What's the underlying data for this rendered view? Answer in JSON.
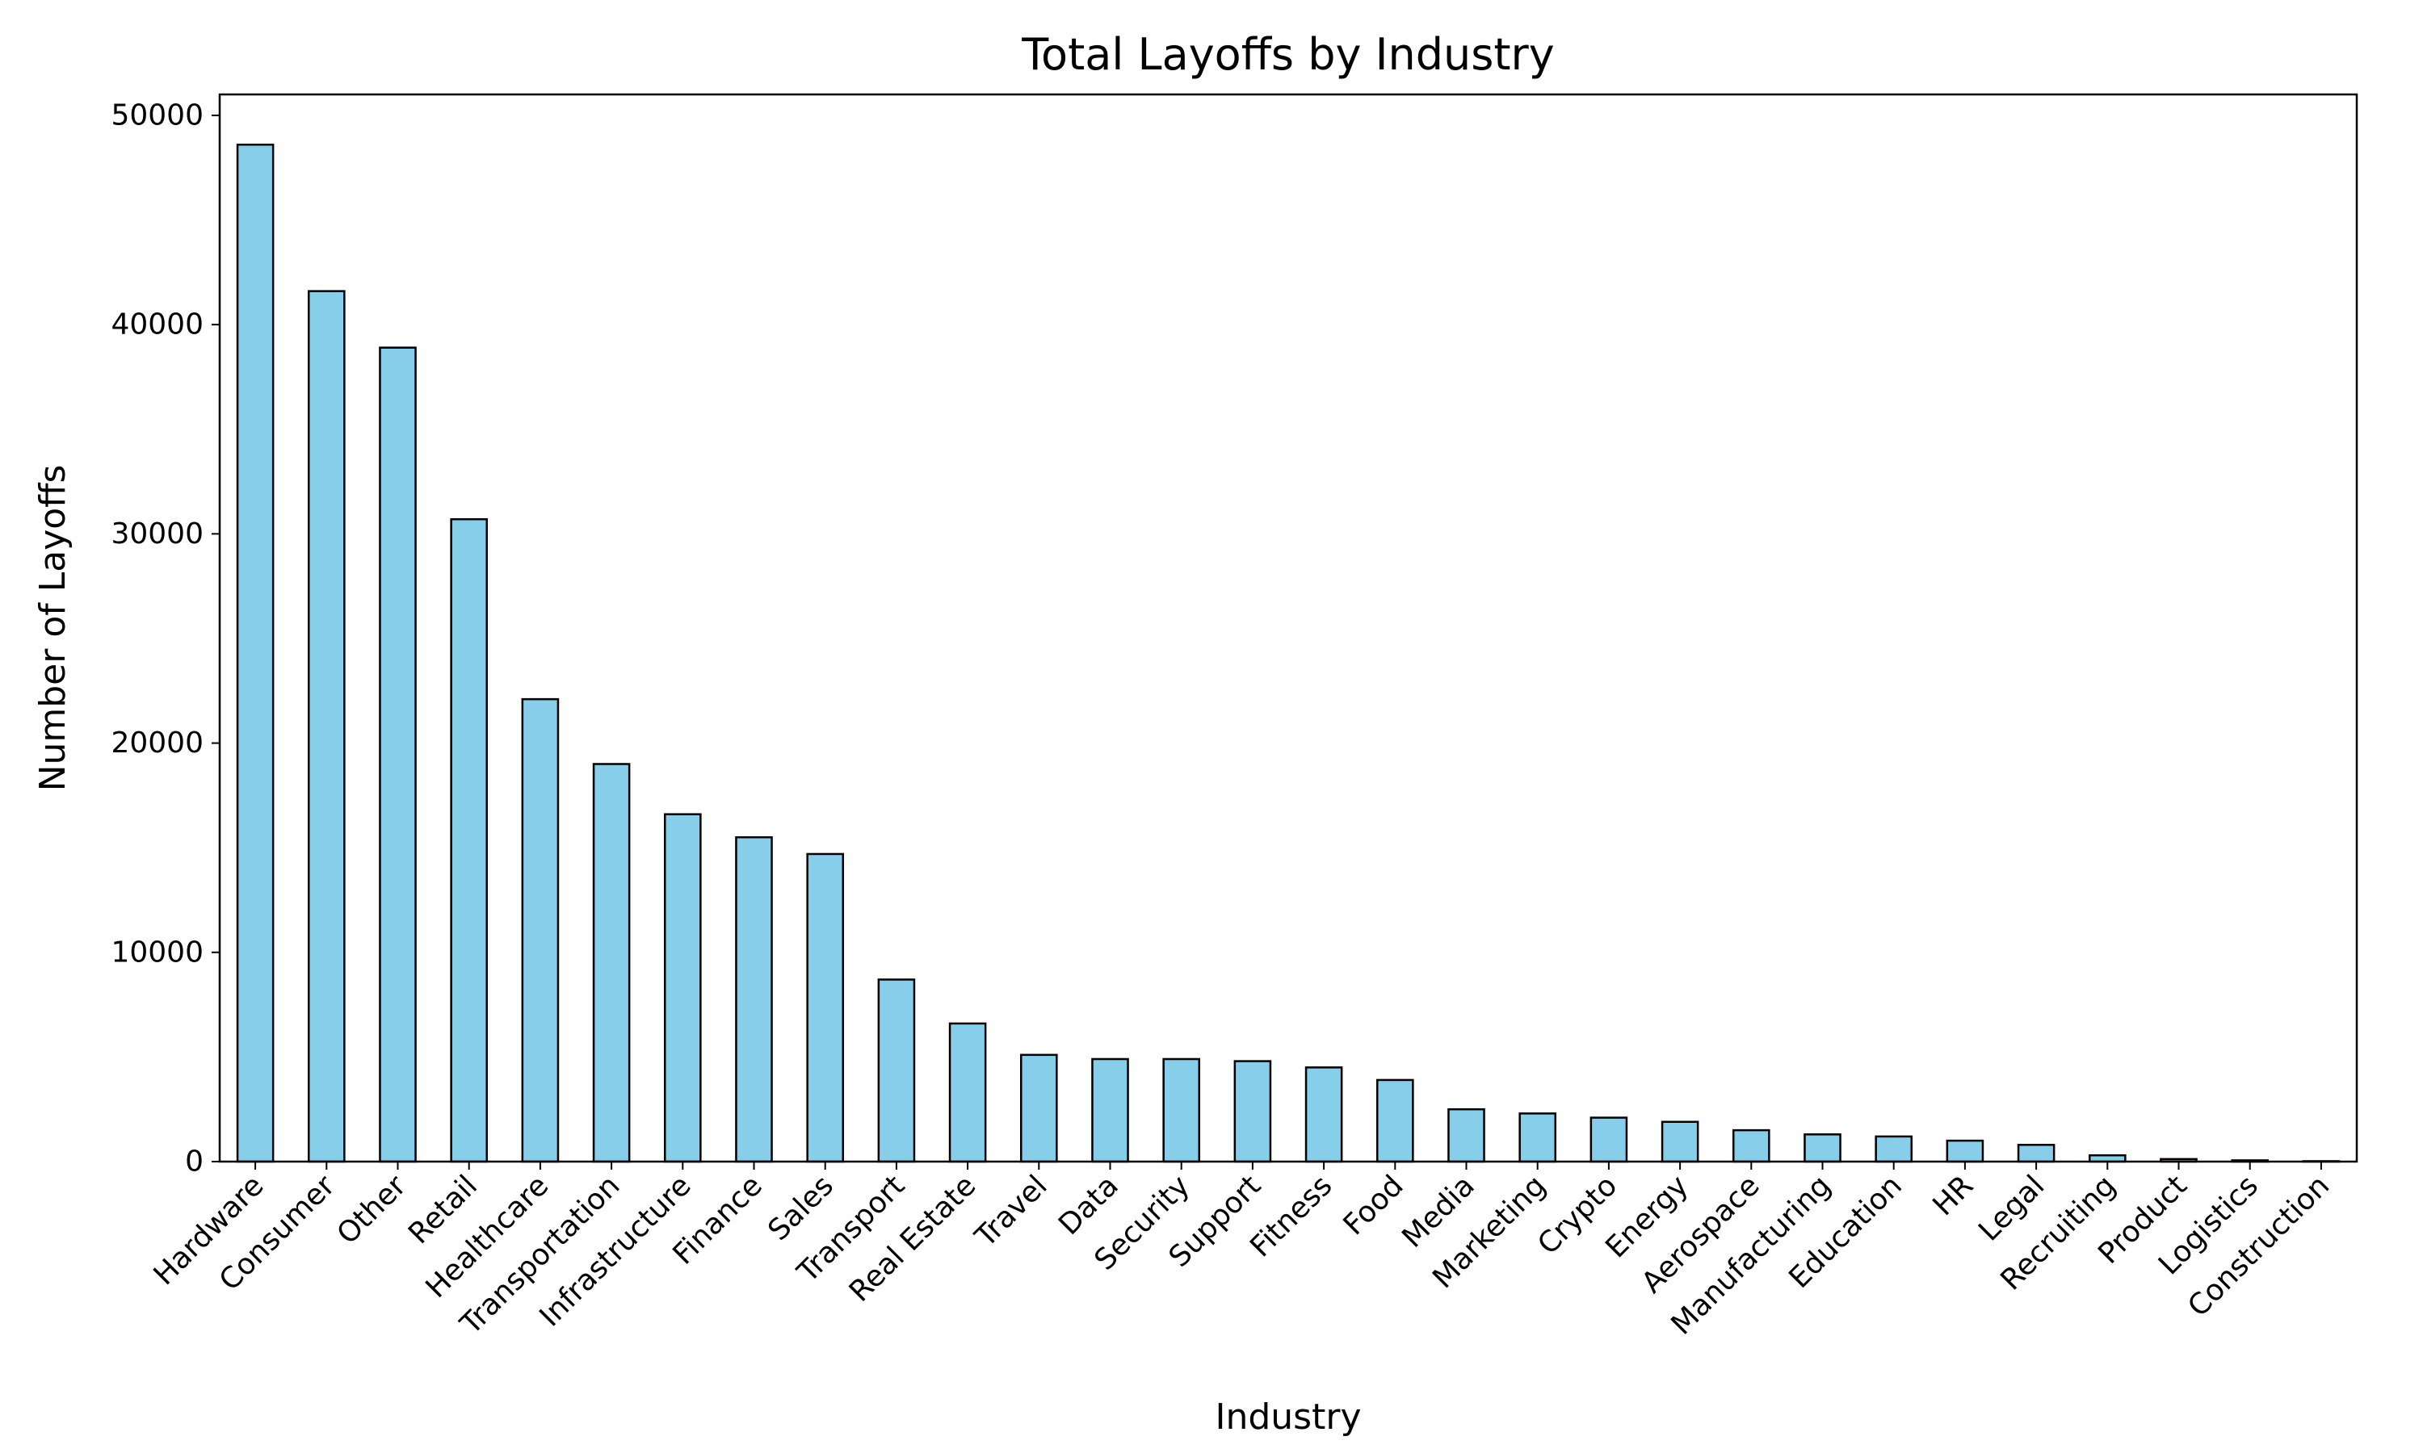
{
  "chart_data": {
    "type": "bar",
    "title": "Total Layoffs by Industry",
    "xlabel": "Industry",
    "ylabel": "Number of Layoffs",
    "ylim": [
      0,
      51000
    ],
    "yticks": [
      0,
      10000,
      20000,
      30000,
      40000,
      50000
    ],
    "grid": false,
    "legend": "none",
    "bar_color": "#87CEEB",
    "edge_color": "#000000",
    "categories": [
      "Hardware",
      "Consumer",
      "Other",
      "Retail",
      "Healthcare",
      "Transportation",
      "Infrastructure",
      "Finance",
      "Sales",
      "Transport",
      "Real Estate",
      "Travel",
      "Data",
      "Security",
      "Support",
      "Fitness",
      "Food",
      "Media",
      "Marketing",
      "Crypto",
      "Energy",
      "Aerospace",
      "Manufacturing",
      "Education",
      "HR",
      "Legal",
      "Recruiting",
      "Product",
      "Logistics",
      "Construction"
    ],
    "values": [
      48600,
      41600,
      38900,
      30700,
      22100,
      19000,
      16600,
      15500,
      14700,
      8700,
      6600,
      5100,
      4900,
      4900,
      4800,
      4500,
      3900,
      2500,
      2300,
      2100,
      1900,
      1500,
      1300,
      1200,
      1000,
      800,
      300,
      120,
      60,
      20
    ]
  }
}
